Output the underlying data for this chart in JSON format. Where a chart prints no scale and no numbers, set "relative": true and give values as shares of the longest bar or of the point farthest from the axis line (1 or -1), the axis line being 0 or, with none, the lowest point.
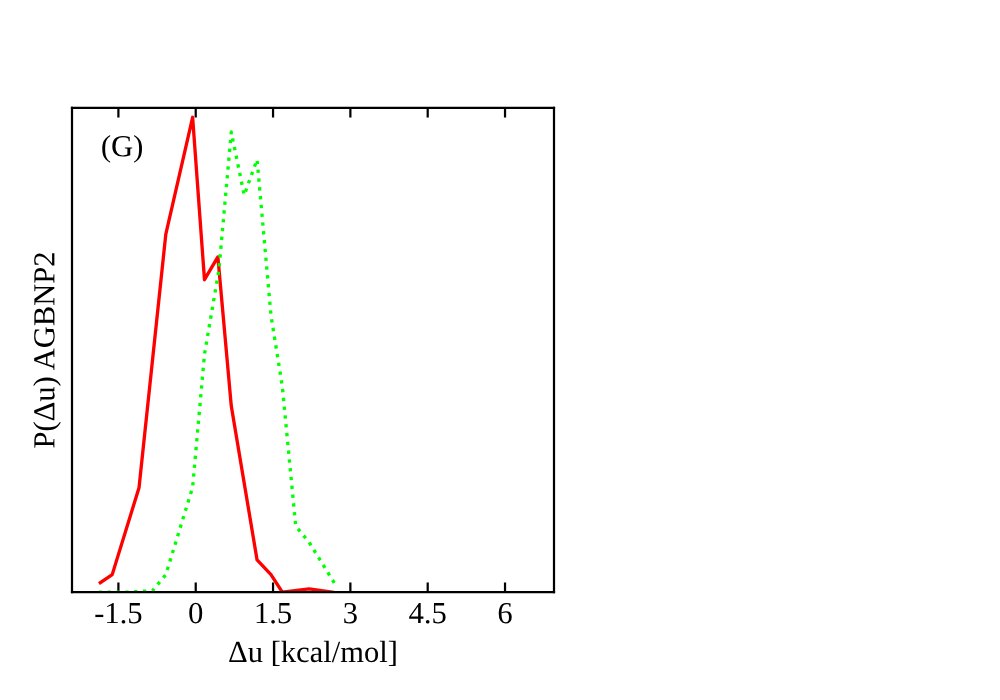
{
  "chart_data": {
    "type": "line",
    "relative": true,
    "xlabel": "Δu [kcal/mol]",
    "ylabel": "P(Δu) AGBNP2",
    "annotations": [
      "(G)"
    ],
    "xlim": [
      -2.4,
      6.95
    ],
    "xticks": [
      -1.5,
      0,
      1.5,
      3,
      4.5,
      6
    ],
    "tick_labels": "x",
    "grid": false,
    "series": [
      {
        "color": "#ff0000",
        "line_style": "solid",
        "x": [
          -1.85,
          -1.62,
          -1.1,
          -0.58,
          -0.06,
          0.17,
          0.43,
          0.69,
          1.19,
          1.46,
          1.68,
          2.2,
          2.65
        ],
        "values": [
          0.02,
          0.037,
          0.22,
          0.754,
          1,
          0.658,
          0.706,
          0.392,
          0.068,
          0.037,
          0,
          0.007,
          0
        ]
      },
      {
        "color": "#00ff00",
        "line_style": "dotted",
        "x": [
          -1.88,
          -1.36,
          -0.84,
          -0.58,
          -0.06,
          0.17,
          0.45,
          0.69,
          0.94,
          1.19,
          1.46,
          1.68,
          1.94,
          2.2,
          2.72
        ],
        "values": [
          0,
          0,
          0.003,
          0.037,
          0.221,
          0.501,
          0.679,
          0.969,
          0.836,
          0.911,
          0.583,
          0.433,
          0.139,
          0.105,
          0.014
        ]
      }
    ]
  }
}
